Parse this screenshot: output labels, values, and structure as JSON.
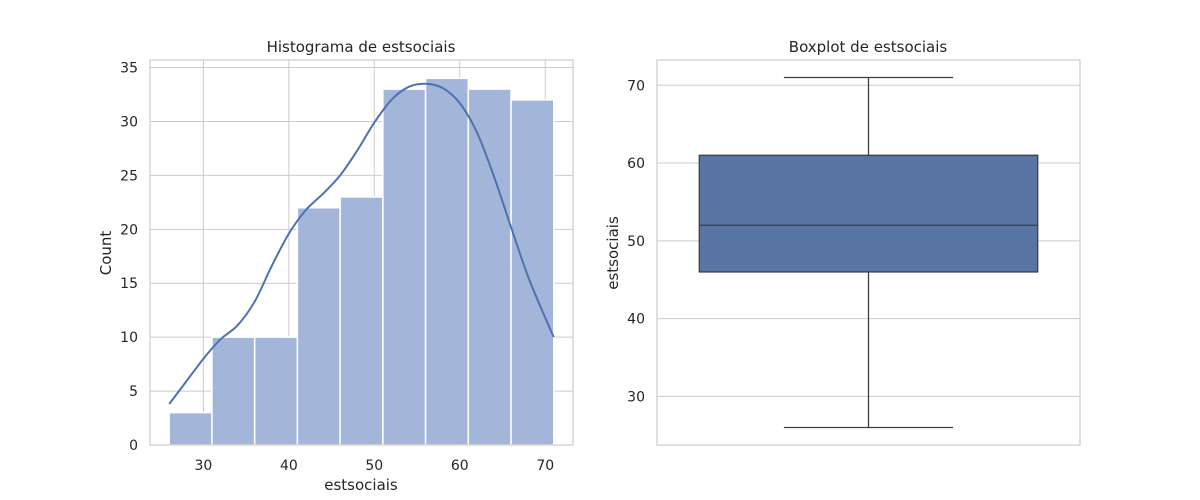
{
  "chart_data": [
    {
      "type": "bar",
      "subtype": "histogram",
      "title": "Histograma de estsociais",
      "xlabel": "estsociais",
      "ylabel": "Count",
      "bins": [
        {
          "x0": 26.0,
          "x1": 31.0,
          "count": 3
        },
        {
          "x0": 31.0,
          "x1": 36.0,
          "count": 10
        },
        {
          "x0": 36.0,
          "x1": 41.0,
          "count": 10
        },
        {
          "x0": 41.0,
          "x1": 46.0,
          "count": 22
        },
        {
          "x0": 46.0,
          "x1": 51.0,
          "count": 23
        },
        {
          "x0": 51.0,
          "x1": 56.0,
          "count": 33
        },
        {
          "x0": 56.0,
          "x1": 61.0,
          "count": 34
        },
        {
          "x0": 61.0,
          "x1": 66.0,
          "count": 33
        },
        {
          "x0": 66.0,
          "x1": 71.0,
          "count": 32
        }
      ],
      "kde": {
        "x": [
          26,
          28,
          30,
          32,
          34,
          36,
          38,
          40,
          42,
          44,
          46,
          48,
          50,
          52,
          54,
          56,
          58,
          60,
          62,
          64,
          66,
          68,
          70,
          71
        ],
        "y": [
          3.8,
          5.9,
          8.0,
          9.8,
          11.1,
          13.3,
          16.6,
          19.6,
          21.8,
          23.3,
          25.0,
          27.3,
          29.9,
          32.0,
          33.2,
          33.5,
          33.1,
          31.7,
          29.0,
          24.9,
          20.2,
          15.6,
          11.8,
          10.0
        ]
      },
      "xticks": [
        30,
        40,
        50,
        60,
        70
      ],
      "yticks": [
        0,
        5,
        10,
        15,
        20,
        25,
        30,
        35
      ],
      "xlim": [
        23.75,
        73.25
      ],
      "ylim": [
        0,
        35.7
      ],
      "grid": true,
      "bar_color": "#a1b4d8",
      "line_color": "#4c72b0"
    },
    {
      "type": "boxplot",
      "title": "Boxplot de estsociais",
      "ylabel": "estsociais",
      "box": {
        "whisker_low": 26,
        "q1": 46,
        "median": 52,
        "q3": 61,
        "whisker_high": 71
      },
      "yticks": [
        30,
        40,
        50,
        60,
        70
      ],
      "ylim": [
        23.75,
        73.25
      ],
      "grid": true,
      "box_color": "#5975a4",
      "line_color": "#3f3f3f"
    }
  ]
}
